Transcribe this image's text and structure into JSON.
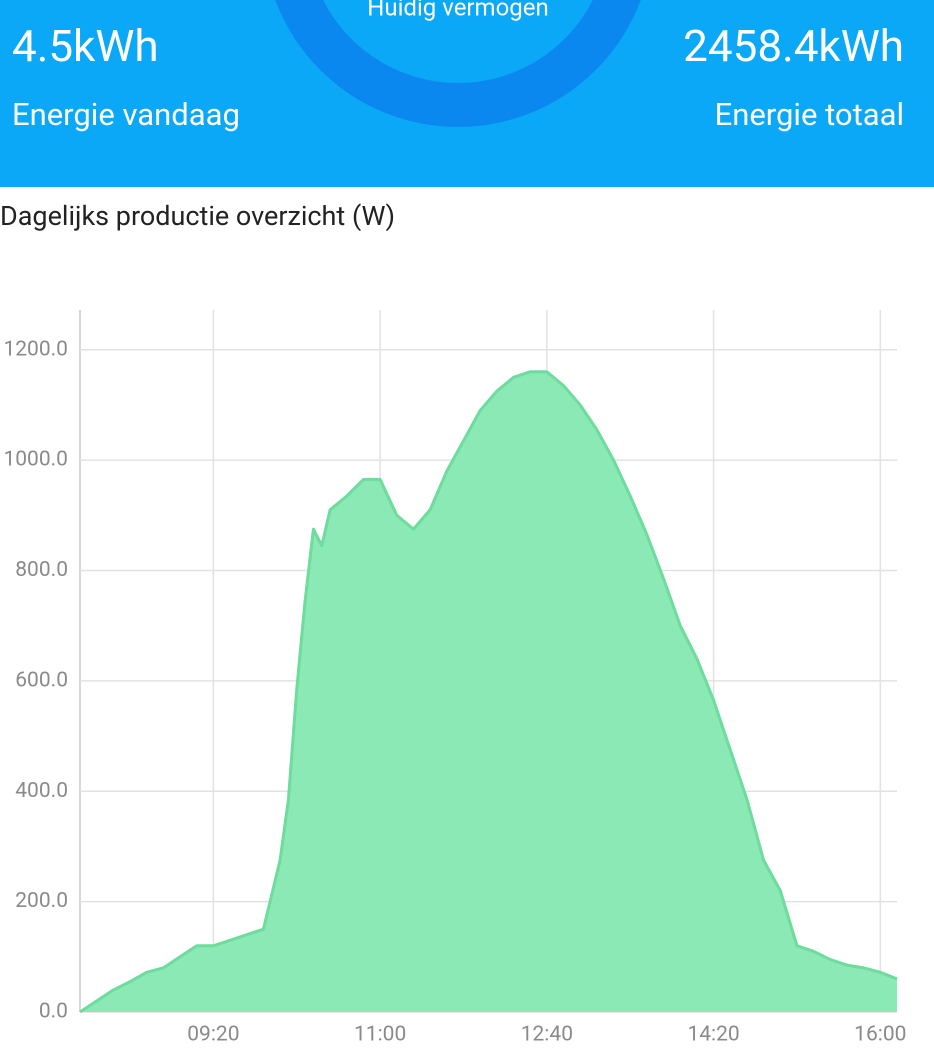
{
  "header": {
    "current_label": "Huidig vermogen",
    "today_value": "4.5kWh",
    "today_label": "Energie vandaag",
    "total_value": "2458.4kWh",
    "total_label": "Energie totaal"
  },
  "chart_data": {
    "type": "area",
    "title": "Dagelijks productie overzicht (W)",
    "x": [
      "08:00",
      "08:10",
      "08:20",
      "08:30",
      "08:40",
      "08:50",
      "09:00",
      "09:10",
      "09:20",
      "09:30",
      "09:40",
      "09:50",
      "10:00",
      "10:05",
      "10:10",
      "10:15",
      "10:20",
      "10:25",
      "10:30",
      "10:40",
      "10:50",
      "11:00",
      "11:10",
      "11:20",
      "11:30",
      "11:40",
      "11:50",
      "12:00",
      "12:10",
      "12:20",
      "12:30",
      "12:40",
      "12:50",
      "13:00",
      "13:10",
      "13:20",
      "13:30",
      "13:40",
      "13:50",
      "14:00",
      "14:10",
      "14:20",
      "14:30",
      "14:40",
      "14:50",
      "15:00",
      "15:10",
      "15:20",
      "15:30",
      "15:40",
      "15:50",
      "16:00",
      "16:10"
    ],
    "series": [
      {
        "name": "W",
        "color": "#8ae9b4",
        "line_color": "#6ddc9c",
        "values": [
          0,
          20,
          40,
          55,
          72,
          80,
          100,
          120,
          120,
          130,
          140,
          150,
          275,
          385,
          585,
          745,
          875,
          845,
          910,
          935,
          965,
          965,
          900,
          875,
          910,
          980,
          1035,
          1090,
          1125,
          1150,
          1160,
          1160,
          1135,
          1100,
          1055,
          1000,
          935,
          865,
          785,
          700,
          640,
          565,
          475,
          385,
          275,
          220,
          120,
          110,
          95,
          85,
          80,
          72,
          60
        ]
      }
    ],
    "xlim": [
      "08:00",
      "16:10"
    ],
    "xticks": [
      "09:20",
      "11:00",
      "12:40",
      "14:20",
      "16:00"
    ],
    "ylim": [
      0,
      1272
    ],
    "yticks": [
      {
        "value": 0,
        "label": "0.0"
      },
      {
        "value": 200,
        "label": "200.0"
      },
      {
        "value": 400,
        "label": "400.0"
      },
      {
        "value": 600,
        "label": "600.0"
      },
      {
        "value": 800,
        "label": "800.0"
      },
      {
        "value": 1000,
        "label": "1000.0"
      },
      {
        "value": 1200,
        "label": "1200.0"
      }
    ],
    "grid": true
  }
}
